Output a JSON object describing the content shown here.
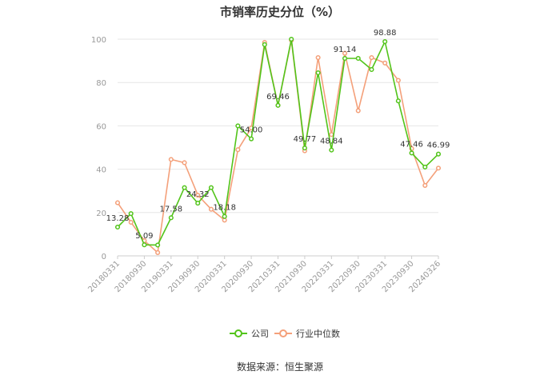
{
  "chart_data": {
    "type": "line",
    "title": "市销率历史分位（%）",
    "ylim": [
      0,
      100
    ],
    "yticks": [
      "0",
      "20",
      "40",
      "60",
      "80",
      "100"
    ],
    "grid": true,
    "legend_position": "bottom",
    "x": [
      "20180331",
      "20180630",
      "20180930",
      "20181231",
      "20190331",
      "20190630",
      "20190930",
      "20191231",
      "20200331",
      "20200630",
      "20200930",
      "20201231",
      "20210331",
      "20210630",
      "20210930",
      "20211231",
      "20220331",
      "20220630",
      "20220930",
      "20221231",
      "20230331",
      "20230630",
      "20230930",
      "20231231",
      "20240326"
    ],
    "xtick_labels": [
      "20180331",
      "20180930",
      "20190331",
      "20190930",
      "20200331",
      "20200930",
      "20210331",
      "20210930",
      "20220331",
      "20220930",
      "20230331",
      "20230930",
      "20240326"
    ],
    "series": [
      {
        "name": "公司",
        "color": "#52c41a",
        "values": [
          13.28,
          19.5,
          5.09,
          5.0,
          17.58,
          31.5,
          24.32,
          31.5,
          18.18,
          60.0,
          54.0,
          97.5,
          69.46,
          100.0,
          49.77,
          84.5,
          48.84,
          91.14,
          91.14,
          86.0,
          98.88,
          71.5,
          47.46,
          41.0,
          46.99
        ],
        "labels": [
          "13.28",
          "",
          "5.09",
          "",
          "17.58",
          "",
          "24.32",
          "",
          "18.18",
          "",
          "54.00",
          "",
          "69.46",
          "",
          "49.77",
          "",
          "48.84",
          "91.14",
          "",
          "",
          "98.88",
          "",
          "47.46",
          "",
          "46.99"
        ]
      },
      {
        "name": "行业中位数",
        "color": "#f4a07a",
        "values": [
          24.5,
          15.5,
          7.0,
          1.5,
          44.5,
          43.0,
          28.0,
          21.5,
          16.5,
          49.0,
          59.0,
          98.5,
          69.5,
          99.5,
          48.5,
          91.5,
          56.0,
          93.5,
          67.0,
          91.5,
          89.0,
          81.0,
          49.5,
          32.5,
          40.5
        ],
        "labels": []
      }
    ]
  },
  "source": "数据来源：恒生聚源"
}
